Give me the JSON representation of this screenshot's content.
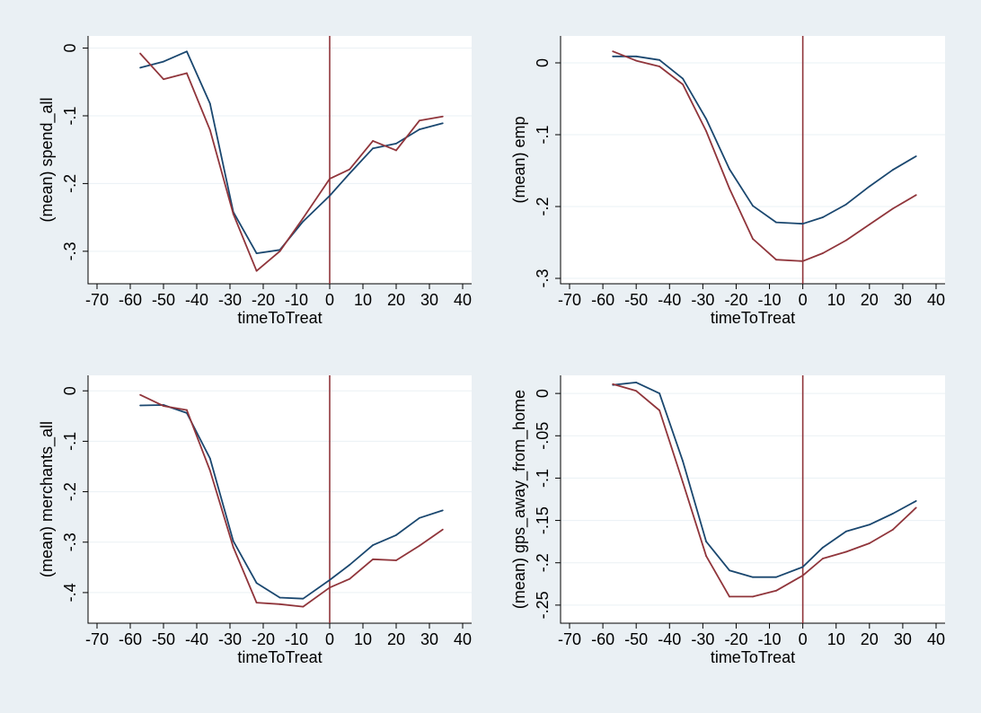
{
  "chart_data": [
    {
      "type": "line",
      "xlabel": "timeToTreat",
      "ylabel": "(mean) spend_all",
      "xlim": [
        -70,
        40
      ],
      "ylim": [
        -0.34,
        0.01
      ],
      "xticks": [
        -70,
        -60,
        -50,
        -40,
        -30,
        -20,
        -10,
        0,
        10,
        20,
        30,
        40
      ],
      "xtick_labels": [
        "-70",
        "-60",
        "-50",
        "-40",
        "-30",
        "-20",
        "-10",
        "0",
        "10",
        "20",
        "30",
        "40"
      ],
      "yticks": [
        0,
        -0.1,
        -0.2,
        -0.3
      ],
      "ytick_labels": [
        "0",
        "-.1",
        "-.2",
        "-.3"
      ],
      "vline_x": 0,
      "grid": true,
      "series": [
        {
          "color": "#1a476f",
          "x": [
            -57,
            -50,
            -43,
            -36,
            -29,
            -22,
            -15,
            -8,
            0,
            6,
            13,
            20,
            27,
            34
          ],
          "values": [
            -0.029,
            -0.02,
            -0.005,
            -0.082,
            -0.242,
            -0.303,
            -0.298,
            -0.256,
            -0.218,
            -0.185,
            -0.148,
            -0.141,
            -0.12,
            -0.111
          ]
        },
        {
          "color": "#90353b",
          "x": [
            -57,
            -50,
            -43,
            -36,
            -29,
            -22,
            -15,
            -8,
            0,
            6,
            13,
            20,
            27,
            34
          ],
          "values": [
            -0.008,
            -0.046,
            -0.037,
            -0.121,
            -0.245,
            -0.329,
            -0.3,
            -0.251,
            -0.193,
            -0.179,
            -0.137,
            -0.151,
            -0.107,
            -0.101
          ]
        }
      ]
    },
    {
      "type": "line",
      "xlabel": "timeToTreat",
      "ylabel": "(mean) emp",
      "xlim": [
        -70,
        40
      ],
      "ylim": [
        -0.3,
        0.03
      ],
      "xticks": [
        -70,
        -60,
        -50,
        -40,
        -30,
        -20,
        -10,
        0,
        10,
        20,
        30,
        40
      ],
      "xtick_labels": [
        "-70",
        "-60",
        "-50",
        "-40",
        "-30",
        "-20",
        "-10",
        "0",
        "10",
        "20",
        "30",
        "40"
      ],
      "yticks": [
        0,
        -0.1,
        -0.2,
        -0.3
      ],
      "ytick_labels": [
        "0",
        "-.1",
        "-.2",
        "-.3"
      ],
      "vline_x": 0,
      "grid": true,
      "series": [
        {
          "color": "#1a476f",
          "x": [
            -57,
            -50,
            -43,
            -36,
            -29,
            -22,
            -15,
            -8,
            0,
            6,
            13,
            20,
            27,
            34
          ],
          "values": [
            0.009,
            0.009,
            0.004,
            -0.022,
            -0.078,
            -0.148,
            -0.199,
            -0.222,
            -0.224,
            -0.215,
            -0.197,
            -0.172,
            -0.149,
            -0.13
          ]
        },
        {
          "color": "#90353b",
          "x": [
            -57,
            -50,
            -43,
            -36,
            -29,
            -22,
            -15,
            -8,
            0,
            6,
            13,
            20,
            27,
            34
          ],
          "values": [
            0.016,
            0.003,
            -0.005,
            -0.03,
            -0.095,
            -0.175,
            -0.245,
            -0.274,
            -0.276,
            -0.265,
            -0.247,
            -0.225,
            -0.203,
            -0.184
          ]
        }
      ]
    },
    {
      "type": "line",
      "xlabel": "timeToTreat",
      "ylabel": "(mean) merchants_all",
      "xlim": [
        -70,
        40
      ],
      "ylim": [
        -0.45,
        0.02
      ],
      "xticks": [
        -70,
        -60,
        -50,
        -40,
        -30,
        -20,
        -10,
        0,
        10,
        20,
        30,
        40
      ],
      "xtick_labels": [
        "-70",
        "-60",
        "-50",
        "-40",
        "-30",
        "-20",
        "-10",
        "0",
        "10",
        "20",
        "30",
        "40"
      ],
      "yticks": [
        0,
        -0.1,
        -0.2,
        -0.3,
        -0.4
      ],
      "ytick_labels": [
        "0",
        "-.1",
        "-.2",
        "-.3",
        "-.4"
      ],
      "vline_x": 0,
      "grid": true,
      "series": [
        {
          "color": "#1a476f",
          "x": [
            -57,
            -50,
            -43,
            -36,
            -29,
            -22,
            -15,
            -8,
            0,
            6,
            13,
            20,
            27,
            34
          ],
          "values": [
            -0.029,
            -0.028,
            -0.044,
            -0.134,
            -0.298,
            -0.381,
            -0.41,
            -0.412,
            -0.375,
            -0.345,
            -0.306,
            -0.286,
            -0.252,
            -0.237
          ]
        },
        {
          "color": "#90353b",
          "x": [
            -57,
            -50,
            -43,
            -36,
            -29,
            -22,
            -15,
            -8,
            0,
            6,
            13,
            20,
            27,
            34
          ],
          "values": [
            -0.008,
            -0.03,
            -0.038,
            -0.158,
            -0.31,
            -0.42,
            -0.423,
            -0.428,
            -0.39,
            -0.373,
            -0.334,
            -0.336,
            -0.307,
            -0.275
          ]
        }
      ]
    },
    {
      "type": "line",
      "xlabel": "timeToTreat",
      "ylabel": "(mean) gps_away_from_home",
      "xlim": [
        -70,
        40
      ],
      "ylim": [
        -0.265,
        0.015
      ],
      "xticks": [
        -70,
        -60,
        -50,
        -40,
        -30,
        -20,
        -10,
        0,
        10,
        20,
        30,
        40
      ],
      "xtick_labels": [
        "-70",
        "-60",
        "-50",
        "-40",
        "-30",
        "-20",
        "-10",
        "0",
        "10",
        "20",
        "30",
        "40"
      ],
      "yticks": [
        0,
        -0.05,
        -0.1,
        -0.15,
        -0.2,
        -0.25
      ],
      "ytick_labels": [
        "0",
        "-.05",
        "-.1",
        "-.15",
        "-.2",
        "-.25"
      ],
      "vline_x": 0,
      "grid": true,
      "series": [
        {
          "color": "#1a476f",
          "x": [
            -57,
            -50,
            -43,
            -36,
            -29,
            -22,
            -15,
            -8,
            0,
            6,
            13,
            20,
            27,
            34
          ],
          "values": [
            0.01,
            0.013,
            0.0,
            -0.08,
            -0.175,
            -0.209,
            -0.217,
            -0.217,
            -0.205,
            -0.182,
            -0.163,
            -0.155,
            -0.142,
            -0.127
          ]
        },
        {
          "color": "#90353b",
          "x": [
            -57,
            -50,
            -43,
            -36,
            -29,
            -22,
            -15,
            -8,
            0,
            6,
            13,
            20,
            27,
            34
          ],
          "values": [
            0.011,
            0.003,
            -0.02,
            -0.105,
            -0.192,
            -0.24,
            -0.24,
            -0.233,
            -0.215,
            -0.195,
            -0.187,
            -0.177,
            -0.161,
            -0.135
          ]
        }
      ]
    }
  ],
  "colors": {
    "background": "#eaf0f4",
    "plot_area": "#ffffff",
    "gridline": "#eaf0f4",
    "vline": "#90353b"
  }
}
